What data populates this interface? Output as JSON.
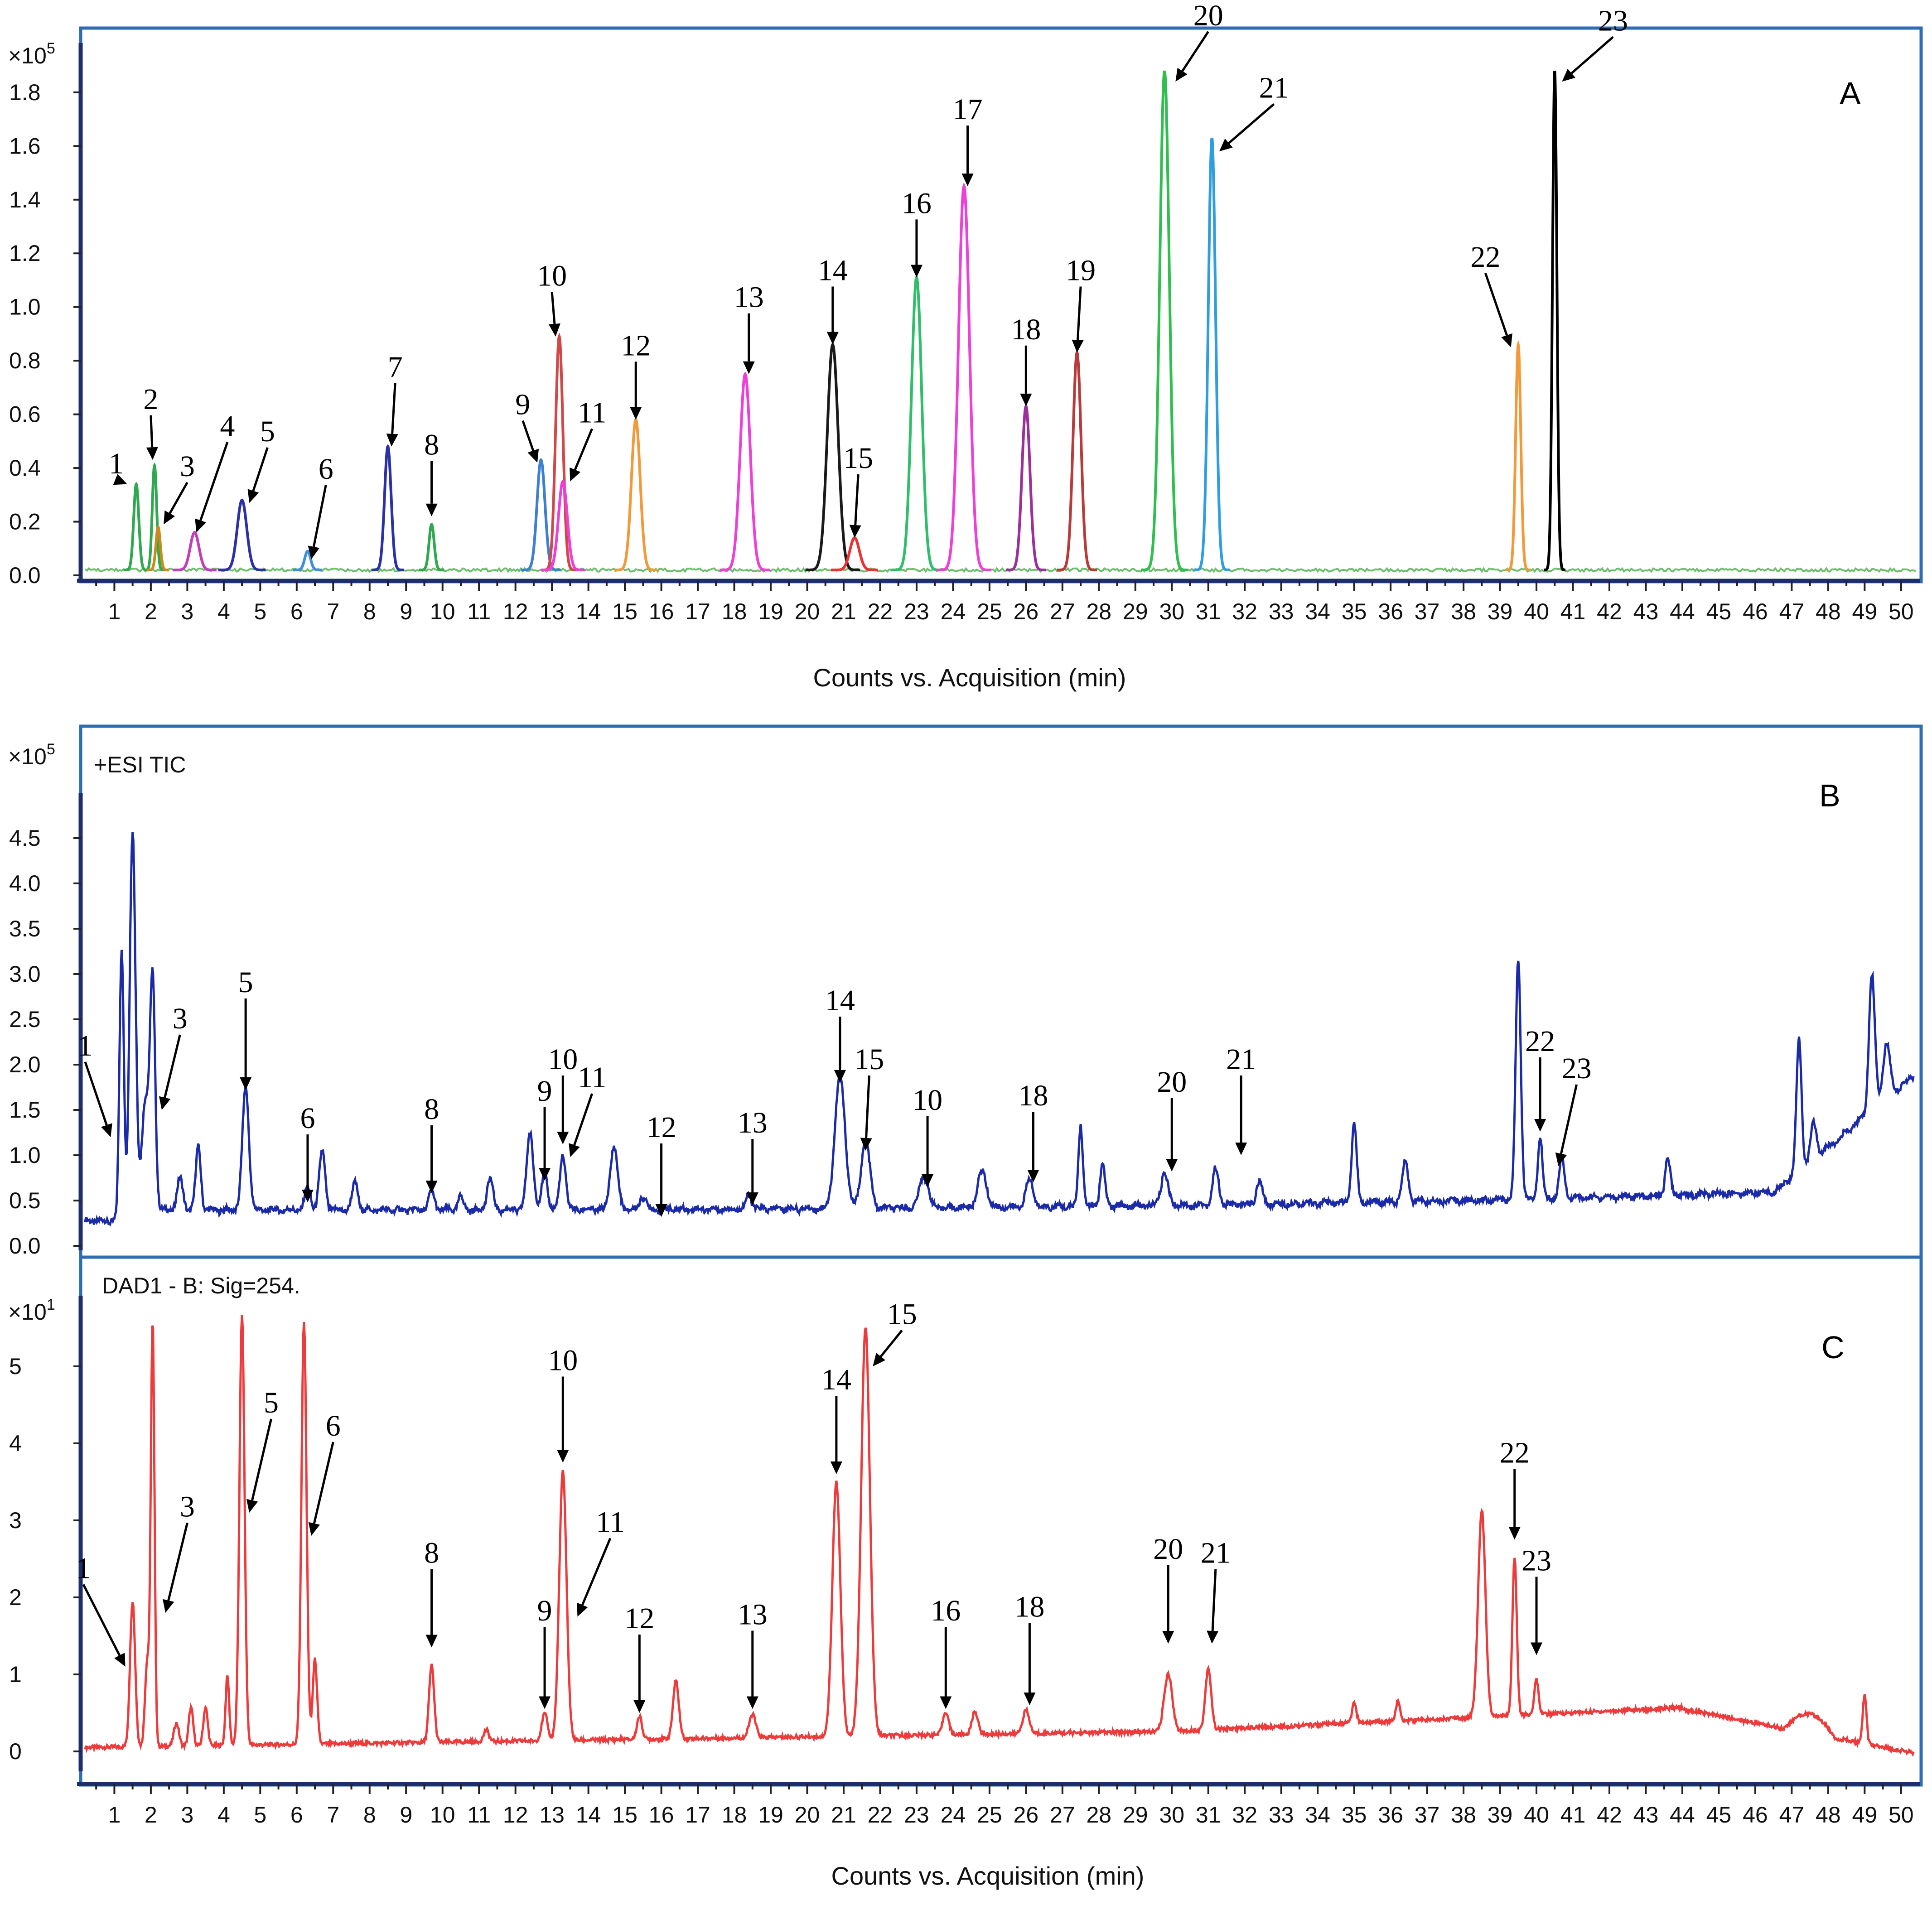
{
  "chart_data": [
    {
      "id": "A",
      "type": "line",
      "panel_letter": "A",
      "y_multiplier": "×10",
      "y_multiplier_exp": "5",
      "xlabel": "Counts vs. Acquisition (min)",
      "ylim": [
        0.0,
        1.95
      ],
      "xlim": [
        0.1,
        50.4
      ],
      "y_ticks": [
        "0.0",
        "0.2",
        "0.4",
        "0.6",
        "0.8",
        "1.0",
        "1.2",
        "1.4",
        "1.6",
        "1.8"
      ],
      "x_ticks": [
        "1",
        "2",
        "3",
        "4",
        "5",
        "6",
        "7",
        "8",
        "9",
        "10",
        "11",
        "12",
        "13",
        "14",
        "15",
        "16",
        "17",
        "18",
        "19",
        "20",
        "21",
        "22",
        "23",
        "24",
        "25",
        "26",
        "27",
        "28",
        "29",
        "30",
        "31",
        "32",
        "33",
        "34",
        "35",
        "36",
        "37",
        "38",
        "39",
        "40",
        "41",
        "42",
        "43",
        "44",
        "45",
        "46",
        "47",
        "48",
        "49",
        "50"
      ],
      "baseline": 0.02,
      "series": [
        {
          "name": "1",
          "color": "#2fa84f",
          "peak_t": 1.6,
          "peak_y": 0.34,
          "width": 0.07
        },
        {
          "name": "2",
          "color": "#2fa84f",
          "peak_t": 2.1,
          "peak_y": 0.41,
          "width": 0.06
        },
        {
          "name": "3",
          "color": "#cc8a1e",
          "peak_t": 2.2,
          "peak_y": 0.18,
          "width": 0.06
        },
        {
          "name": "4",
          "color": "#c03fb8",
          "peak_t": 3.2,
          "peak_y": 0.16,
          "width": 0.12
        },
        {
          "name": "5",
          "color": "#2b2fa8",
          "peak_t": 4.5,
          "peak_y": 0.28,
          "width": 0.13
        },
        {
          "name": "6",
          "color": "#3d8fe0",
          "peak_t": 6.3,
          "peak_y": 0.09,
          "width": 0.08
        },
        {
          "name": "7",
          "color": "#2b2fa8",
          "peak_t": 8.5,
          "peak_y": 0.48,
          "width": 0.09
        },
        {
          "name": "8",
          "color": "#2fa84f",
          "peak_t": 9.7,
          "peak_y": 0.19,
          "width": 0.07
        },
        {
          "name": "9",
          "color": "#3d7fd0",
          "peak_t": 12.7,
          "peak_y": 0.43,
          "width": 0.11
        },
        {
          "name": "10",
          "color": "#d04848",
          "peak_t": 13.2,
          "peak_y": 0.89,
          "width": 0.1
        },
        {
          "name": "11",
          "color": "#ee3fd8",
          "peak_t": 13.3,
          "peak_y": 0.35,
          "width": 0.12
        },
        {
          "name": "12",
          "color": "#f29a3a",
          "peak_t": 15.3,
          "peak_y": 0.58,
          "width": 0.12
        },
        {
          "name": "13",
          "color": "#ee3fd8",
          "peak_t": 18.3,
          "peak_y": 0.75,
          "width": 0.14
        },
        {
          "name": "14",
          "color": "#1a1a1a",
          "peak_t": 20.7,
          "peak_y": 0.86,
          "width": 0.15
        },
        {
          "name": "15",
          "color": "#ee3030",
          "peak_t": 21.3,
          "peak_y": 0.14,
          "width": 0.13
        },
        {
          "name": "16",
          "color": "#2fbf6a",
          "peak_t": 23.0,
          "peak_y": 1.11,
          "width": 0.14
        },
        {
          "name": "17",
          "color": "#ee3fd8",
          "peak_t": 24.3,
          "peak_y": 1.45,
          "width": 0.15
        },
        {
          "name": "18",
          "color": "#9b2f9b",
          "peak_t": 26.0,
          "peak_y": 0.63,
          "width": 0.11
        },
        {
          "name": "19",
          "color": "#b83a3a",
          "peak_t": 27.4,
          "peak_y": 0.83,
          "width": 0.11
        },
        {
          "name": "20",
          "color": "#2fbf4f",
          "peak_t": 29.8,
          "peak_y": 1.88,
          "width": 0.13
        },
        {
          "name": "21",
          "color": "#2f9ee0",
          "peak_t": 31.1,
          "peak_y": 1.63,
          "width": 0.1
        },
        {
          "name": "22",
          "color": "#f29a3a",
          "peak_t": 39.5,
          "peak_y": 0.86,
          "width": 0.07
        },
        {
          "name": "23",
          "color": "#000000",
          "peak_t": 40.5,
          "peak_y": 1.88,
          "width": 0.06
        }
      ],
      "annotations": [
        {
          "label": "1",
          "tx": 1.05,
          "ty": 0.38,
          "ax": 1.35,
          "ay": 0.34
        },
        {
          "label": "2",
          "tx": 2.0,
          "ty": 0.62,
          "ax": 2.05,
          "ay": 0.43
        },
        {
          "label": "3",
          "tx": 3.0,
          "ty": 0.37,
          "ax": 2.35,
          "ay": 0.19
        },
        {
          "label": "4",
          "tx": 4.1,
          "ty": 0.52,
          "ax": 3.25,
          "ay": 0.16
        },
        {
          "label": "5",
          "tx": 5.2,
          "ty": 0.5,
          "ax": 4.7,
          "ay": 0.27
        },
        {
          "label": "6",
          "tx": 6.8,
          "ty": 0.36,
          "ax": 6.4,
          "ay": 0.06
        },
        {
          "label": "7",
          "tx": 8.7,
          "ty": 0.74,
          "ax": 8.6,
          "ay": 0.48
        },
        {
          "label": "8",
          "tx": 9.7,
          "ty": 0.45,
          "ax": 9.7,
          "ay": 0.22
        },
        {
          "label": "9",
          "tx": 12.2,
          "ty": 0.6,
          "ax": 12.6,
          "ay": 0.42
        },
        {
          "label": "10",
          "tx": 13.0,
          "ty": 1.08,
          "ax": 13.1,
          "ay": 0.89
        },
        {
          "label": "11",
          "tx": 14.1,
          "ty": 0.57,
          "ax": 13.5,
          "ay": 0.35
        },
        {
          "label": "12",
          "tx": 15.3,
          "ty": 0.82,
          "ax": 15.3,
          "ay": 0.58
        },
        {
          "label": "13",
          "tx": 18.4,
          "ty": 1.0,
          "ax": 18.4,
          "ay": 0.75
        },
        {
          "label": "14",
          "tx": 20.7,
          "ty": 1.1,
          "ax": 20.7,
          "ay": 0.86
        },
        {
          "label": "15",
          "tx": 21.4,
          "ty": 0.4,
          "ax": 21.3,
          "ay": 0.14
        },
        {
          "label": "16",
          "tx": 23.0,
          "ty": 1.35,
          "ax": 23.0,
          "ay": 1.11
        },
        {
          "label": "17",
          "tx": 24.4,
          "ty": 1.7,
          "ax": 24.4,
          "ay": 1.45
        },
        {
          "label": "18",
          "tx": 26.0,
          "ty": 0.88,
          "ax": 26.0,
          "ay": 0.63
        },
        {
          "label": "19",
          "tx": 27.5,
          "ty": 1.1,
          "ax": 27.4,
          "ay": 0.83
        },
        {
          "label": "20",
          "tx": 31.0,
          "ty": 2.05,
          "ax": 30.1,
          "ay": 1.84
        },
        {
          "label": "21",
          "tx": 32.8,
          "ty": 1.78,
          "ax": 31.3,
          "ay": 1.58
        },
        {
          "label": "22",
          "tx": 38.6,
          "ty": 1.15,
          "ax": 39.3,
          "ay": 0.85
        },
        {
          "label": "23",
          "tx": 42.1,
          "ty": 2.03,
          "ax": 40.7,
          "ay": 1.84
        }
      ]
    },
    {
      "id": "B",
      "type": "line",
      "panel_letter": "B",
      "trace_label": "+ESI TIC",
      "y_multiplier": "×10",
      "y_multiplier_exp": "5",
      "ylim": [
        0.0,
        4.9
      ],
      "xlim": [
        0.1,
        50.4
      ],
      "y_ticks": [
        "0.0",
        "0.5",
        "1.0",
        "1.5",
        "2.0",
        "2.5",
        "3.0",
        "3.5",
        "4.0",
        "4.5"
      ],
      "color": "#1a2aa8",
      "baseline_start": 0.25,
      "baseline_end": 1.7,
      "peaks": [
        {
          "t": 1.2,
          "y": 3.0,
          "w": 0.06
        },
        {
          "t": 1.5,
          "y": 4.3,
          "w": 0.08
        },
        {
          "t": 1.85,
          "y": 1.2,
          "w": 0.1
        },
        {
          "t": 2.05,
          "y": 2.5,
          "w": 0.07
        },
        {
          "t": 2.8,
          "y": 0.35,
          "w": 0.08
        },
        {
          "t": 3.3,
          "y": 0.7,
          "w": 0.07
        },
        {
          "t": 4.6,
          "y": 1.35,
          "w": 0.09
        },
        {
          "t": 6.3,
          "y": 0.25,
          "w": 0.08
        },
        {
          "t": 6.7,
          "y": 0.65,
          "w": 0.08
        },
        {
          "t": 7.6,
          "y": 0.3,
          "w": 0.08
        },
        {
          "t": 9.7,
          "y": 0.2,
          "w": 0.08
        },
        {
          "t": 10.5,
          "y": 0.15,
          "w": 0.07
        },
        {
          "t": 11.3,
          "y": 0.35,
          "w": 0.08
        },
        {
          "t": 12.4,
          "y": 0.85,
          "w": 0.09
        },
        {
          "t": 12.8,
          "y": 0.4,
          "w": 0.08
        },
        {
          "t": 13.3,
          "y": 0.6,
          "w": 0.08
        },
        {
          "t": 14.7,
          "y": 0.7,
          "w": 0.1
        },
        {
          "t": 15.5,
          "y": 0.15,
          "w": 0.08
        },
        {
          "t": 18.4,
          "y": 0.15,
          "w": 0.08
        },
        {
          "t": 20.9,
          "y": 1.45,
          "w": 0.14
        },
        {
          "t": 21.6,
          "y": 0.75,
          "w": 0.12
        },
        {
          "t": 23.2,
          "y": 0.35,
          "w": 0.12
        },
        {
          "t": 24.8,
          "y": 0.4,
          "w": 0.12
        },
        {
          "t": 26.1,
          "y": 0.3,
          "w": 0.1
        },
        {
          "t": 27.5,
          "y": 0.9,
          "w": 0.06
        },
        {
          "t": 28.1,
          "y": 0.45,
          "w": 0.07
        },
        {
          "t": 29.8,
          "y": 0.35,
          "w": 0.1
        },
        {
          "t": 31.2,
          "y": 0.4,
          "w": 0.08
        },
        {
          "t": 32.4,
          "y": 0.25,
          "w": 0.08
        },
        {
          "t": 35.0,
          "y": 0.85,
          "w": 0.07
        },
        {
          "t": 36.4,
          "y": 0.45,
          "w": 0.08
        },
        {
          "t": 39.5,
          "y": 2.65,
          "w": 0.07
        },
        {
          "t": 40.1,
          "y": 0.7,
          "w": 0.06
        },
        {
          "t": 40.7,
          "y": 0.45,
          "w": 0.07
        },
        {
          "t": 43.6,
          "y": 0.4,
          "w": 0.07
        },
        {
          "t": 47.2,
          "y": 1.45,
          "w": 0.07
        },
        {
          "t": 47.6,
          "y": 0.4,
          "w": 0.08
        },
        {
          "t": 49.2,
          "y": 1.5,
          "w": 0.08
        },
        {
          "t": 49.6,
          "y": 0.6,
          "w": 0.1
        }
      ],
      "annotations": [
        {
          "label": "1",
          "tx": 0.2,
          "ty": 2.1,
          "ax": 0.9,
          "ay": 1.2
        },
        {
          "label": "3",
          "tx": 2.8,
          "ty": 2.4,
          "ax": 2.3,
          "ay": 1.5
        },
        {
          "label": "5",
          "tx": 4.6,
          "ty": 2.8,
          "ax": 4.6,
          "ay": 1.72
        },
        {
          "label": "6",
          "tx": 6.3,
          "ty": 1.3,
          "ax": 6.3,
          "ay": 0.48
        },
        {
          "label": "8",
          "tx": 9.7,
          "ty": 1.4,
          "ax": 9.7,
          "ay": 0.58
        },
        {
          "label": "9",
          "tx": 12.8,
          "ty": 1.6,
          "ax": 12.8,
          "ay": 0.72
        },
        {
          "label": "10",
          "tx": 13.3,
          "ty": 1.95,
          "ax": 13.3,
          "ay": 1.12
        },
        {
          "label": "11",
          "tx": 14.1,
          "ty": 1.75,
          "ax": 13.5,
          "ay": 0.98
        },
        {
          "label": "12",
          "tx": 16.0,
          "ty": 1.2,
          "ax": 16.0,
          "ay": 0.32
        },
        {
          "label": "13",
          "tx": 18.5,
          "ty": 1.25,
          "ax": 18.5,
          "ay": 0.45
        },
        {
          "label": "14",
          "tx": 20.9,
          "ty": 2.6,
          "ax": 20.9,
          "ay": 1.8
        },
        {
          "label": "15",
          "tx": 21.7,
          "ty": 1.95,
          "ax": 21.6,
          "ay": 1.05
        },
        {
          "label": "10",
          "tx": 23.3,
          "ty": 1.5,
          "ax": 23.3,
          "ay": 0.65
        },
        {
          "label": "18",
          "tx": 26.2,
          "ty": 1.55,
          "ax": 26.2,
          "ay": 0.7
        },
        {
          "label": "20",
          "tx": 30.0,
          "ty": 1.7,
          "ax": 30.0,
          "ay": 0.82
        },
        {
          "label": "21",
          "tx": 31.9,
          "ty": 1.95,
          "ax": 31.9,
          "ay": 1.0
        },
        {
          "label": "22",
          "tx": 40.1,
          "ty": 2.15,
          "ax": 40.1,
          "ay": 1.26
        },
        {
          "label": "23",
          "tx": 41.1,
          "ty": 1.85,
          "ax": 40.6,
          "ay": 0.88
        }
      ]
    },
    {
      "id": "C",
      "type": "line",
      "panel_letter": "C",
      "trace_label": "DAD1 - B: Sig=254.",
      "y_multiplier": "×10",
      "y_multiplier_exp": "1",
      "xlabel": "Counts vs. Acquisition (min)",
      "ylim": [
        -0.2,
        5.8
      ],
      "xlim": [
        0.1,
        50.4
      ],
      "y_ticks": [
        "0",
        "1",
        "2",
        "3",
        "4",
        "5"
      ],
      "x_ticks": [
        "1",
        "2",
        "3",
        "4",
        "5",
        "6",
        "7",
        "8",
        "9",
        "10",
        "11",
        "12",
        "13",
        "14",
        "15",
        "16",
        "17",
        "18",
        "19",
        "20",
        "21",
        "22",
        "23",
        "24",
        "25",
        "26",
        "27",
        "28",
        "29",
        "30",
        "31",
        "32",
        "33",
        "34",
        "35",
        "36",
        "37",
        "38",
        "39",
        "40",
        "41",
        "42",
        "43",
        "44",
        "45",
        "46",
        "47",
        "48",
        "49",
        "50"
      ],
      "color": "#ee3a3a",
      "peaks": [
        {
          "t": 1.5,
          "y": 1.9,
          "w": 0.07
        },
        {
          "t": 1.9,
          "y": 1.1,
          "w": 0.06
        },
        {
          "t": 2.05,
          "y": 5.5,
          "w": 0.05
        },
        {
          "t": 2.7,
          "y": 0.3,
          "w": 0.07
        },
        {
          "t": 3.1,
          "y": 0.5,
          "w": 0.06
        },
        {
          "t": 3.5,
          "y": 0.5,
          "w": 0.06
        },
        {
          "t": 4.1,
          "y": 0.9,
          "w": 0.05
        },
        {
          "t": 4.5,
          "y": 5.6,
          "w": 0.07
        },
        {
          "t": 6.2,
          "y": 5.5,
          "w": 0.07
        },
        {
          "t": 6.5,
          "y": 1.1,
          "w": 0.06
        },
        {
          "t": 9.7,
          "y": 1.0,
          "w": 0.07
        },
        {
          "t": 11.2,
          "y": 0.15,
          "w": 0.07
        },
        {
          "t": 12.8,
          "y": 0.35,
          "w": 0.08
        },
        {
          "t": 13.3,
          "y": 3.5,
          "w": 0.1
        },
        {
          "t": 15.4,
          "y": 0.3,
          "w": 0.07
        },
        {
          "t": 16.4,
          "y": 0.75,
          "w": 0.08
        },
        {
          "t": 18.5,
          "y": 0.3,
          "w": 0.09
        },
        {
          "t": 20.8,
          "y": 3.3,
          "w": 0.11
        },
        {
          "t": 21.6,
          "y": 5.3,
          "w": 0.12
        },
        {
          "t": 23.8,
          "y": 0.3,
          "w": 0.08
        },
        {
          "t": 24.6,
          "y": 0.3,
          "w": 0.08
        },
        {
          "t": 26.0,
          "y": 0.3,
          "w": 0.09
        },
        {
          "t": 29.9,
          "y": 0.75,
          "w": 0.11
        },
        {
          "t": 31.0,
          "y": 0.8,
          "w": 0.08
        },
        {
          "t": 35.0,
          "y": 0.25,
          "w": 0.06
        },
        {
          "t": 36.2,
          "y": 0.25,
          "w": 0.06
        },
        {
          "t": 38.5,
          "y": 2.7,
          "w": 0.1
        },
        {
          "t": 39.4,
          "y": 2.05,
          "w": 0.06
        },
        {
          "t": 40.0,
          "y": 0.45,
          "w": 0.06
        },
        {
          "t": 49.0,
          "y": 0.65,
          "w": 0.05
        }
      ],
      "annotations": [
        {
          "label": "1",
          "tx": 0.15,
          "ty": 2.25,
          "ax": 1.3,
          "ay": 1.1
        },
        {
          "label": "3",
          "tx": 3.0,
          "ty": 3.05,
          "ax": 2.4,
          "ay": 1.8
        },
        {
          "label": "5",
          "tx": 5.3,
          "ty": 4.4,
          "ax": 4.7,
          "ay": 3.1
        },
        {
          "label": "6",
          "tx": 7.0,
          "ty": 4.1,
          "ax": 6.4,
          "ay": 2.8
        },
        {
          "label": "8",
          "tx": 9.7,
          "ty": 2.45,
          "ax": 9.7,
          "ay": 1.35
        },
        {
          "label": "9",
          "tx": 12.8,
          "ty": 1.7,
          "ax": 12.8,
          "ay": 0.55
        },
        {
          "label": "10",
          "tx": 13.3,
          "ty": 4.95,
          "ax": 13.3,
          "ay": 3.75
        },
        {
          "label": "11",
          "tx": 14.6,
          "ty": 2.85,
          "ax": 13.7,
          "ay": 1.75
        },
        {
          "label": "12",
          "tx": 15.4,
          "ty": 1.6,
          "ax": 15.4,
          "ay": 0.5
        },
        {
          "label": "13",
          "tx": 18.5,
          "ty": 1.65,
          "ax": 18.5,
          "ay": 0.55
        },
        {
          "label": "14",
          "tx": 20.8,
          "ty": 4.7,
          "ax": 20.8,
          "ay": 3.6
        },
        {
          "label": "15",
          "tx": 22.6,
          "ty": 5.55,
          "ax": 21.8,
          "ay": 5.0
        },
        {
          "label": "16",
          "tx": 23.8,
          "ty": 1.7,
          "ax": 23.8,
          "ay": 0.55
        },
        {
          "label": "18",
          "tx": 26.1,
          "ty": 1.75,
          "ax": 26.1,
          "ay": 0.6
        },
        {
          "label": "20",
          "tx": 29.9,
          "ty": 2.5,
          "ax": 29.9,
          "ay": 1.4
        },
        {
          "label": "21",
          "tx": 31.2,
          "ty": 2.45,
          "ax": 31.1,
          "ay": 1.4
        },
        {
          "label": "22",
          "tx": 39.4,
          "ty": 3.75,
          "ax": 39.4,
          "ay": 2.75
        },
        {
          "label": "23",
          "tx": 40.0,
          "ty": 2.35,
          "ax": 40.0,
          "ay": 1.25
        }
      ]
    }
  ]
}
